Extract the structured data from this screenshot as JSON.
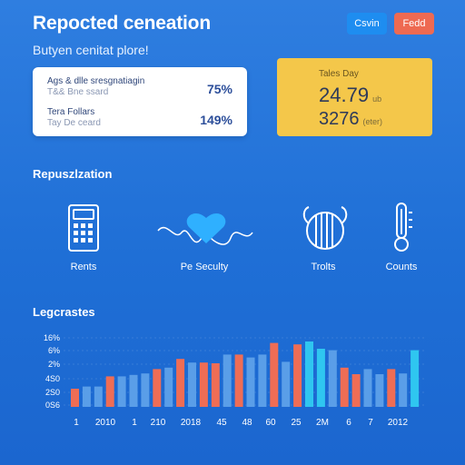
{
  "header": {
    "title": "Repocted ceneation",
    "subtitle": "Butyen cenitat plore!",
    "button_a": "Csvin",
    "button_b": "Fedd"
  },
  "summary_card": {
    "rows": [
      {
        "line1": "Ags & dlle sresgnatiagin",
        "line2": "T&& Bne ssard",
        "value": "75%"
      },
      {
        "line1": "Tera Follars",
        "line2": "Tay De ceard",
        "value": "149%"
      }
    ]
  },
  "highlight_card": {
    "label": "Tales Day",
    "value1": "24.79",
    "value1_suffix": "ub",
    "value2": "3276",
    "value2_suffix": "(eter)"
  },
  "section1": {
    "title": "Repuszlzation",
    "items": [
      {
        "label": "Rents",
        "icon": "calculator-icon"
      },
      {
        "label": "Pe Seculty",
        "icon": "heart-icon"
      },
      {
        "label": "Trolts",
        "icon": "yarn-ball-icon"
      },
      {
        "label": "Counts",
        "icon": "thermometer-icon"
      }
    ]
  },
  "section2": {
    "title": "Legcrastes"
  },
  "chart_data": {
    "type": "bar",
    "y_ticks": [
      "16%",
      "6%",
      "2%",
      "4S0",
      "2S0",
      "0S6"
    ],
    "x_ticks": [
      "1",
      "2010",
      "1",
      "210",
      "2018",
      "45",
      "48",
      "60",
      "25",
      "2M",
      "6",
      "7",
      "2012"
    ],
    "values": [
      0.25,
      0.28,
      0.28,
      0.42,
      0.42,
      0.44,
      0.46,
      0.52,
      0.54,
      0.66,
      0.61,
      0.61,
      0.6,
      0.72,
      0.72,
      0.68,
      0.72,
      0.88,
      0.62,
      0.86,
      0.9,
      0.8,
      0.78,
      0.54,
      0.45,
      0.52,
      0.45,
      0.52,
      0.46,
      0.78
    ],
    "colors": [
      "#ef6d55",
      "#5a9ee8",
      "#5a9ee8",
      "#ef6d55",
      "#5a9ee8",
      "#5a9ee8",
      "#5a9ee8",
      "#ef6d55",
      "#5a9ee8",
      "#ef6d55",
      "#5a9ee8",
      "#ef6d55",
      "#ef6d55",
      "#5a9ee8",
      "#ef6d55",
      "#5a9ee8",
      "#5a9ee8",
      "#ef6d55",
      "#5a9ee8",
      "#ef6d55",
      "#2fc6f0",
      "#2fc6f0",
      "#5a9ee8",
      "#ef6d55",
      "#ef6d55",
      "#5a9ee8",
      "#5a9ee8",
      "#ef6d55",
      "#5a9ee8",
      "#2fc6f0"
    ]
  }
}
